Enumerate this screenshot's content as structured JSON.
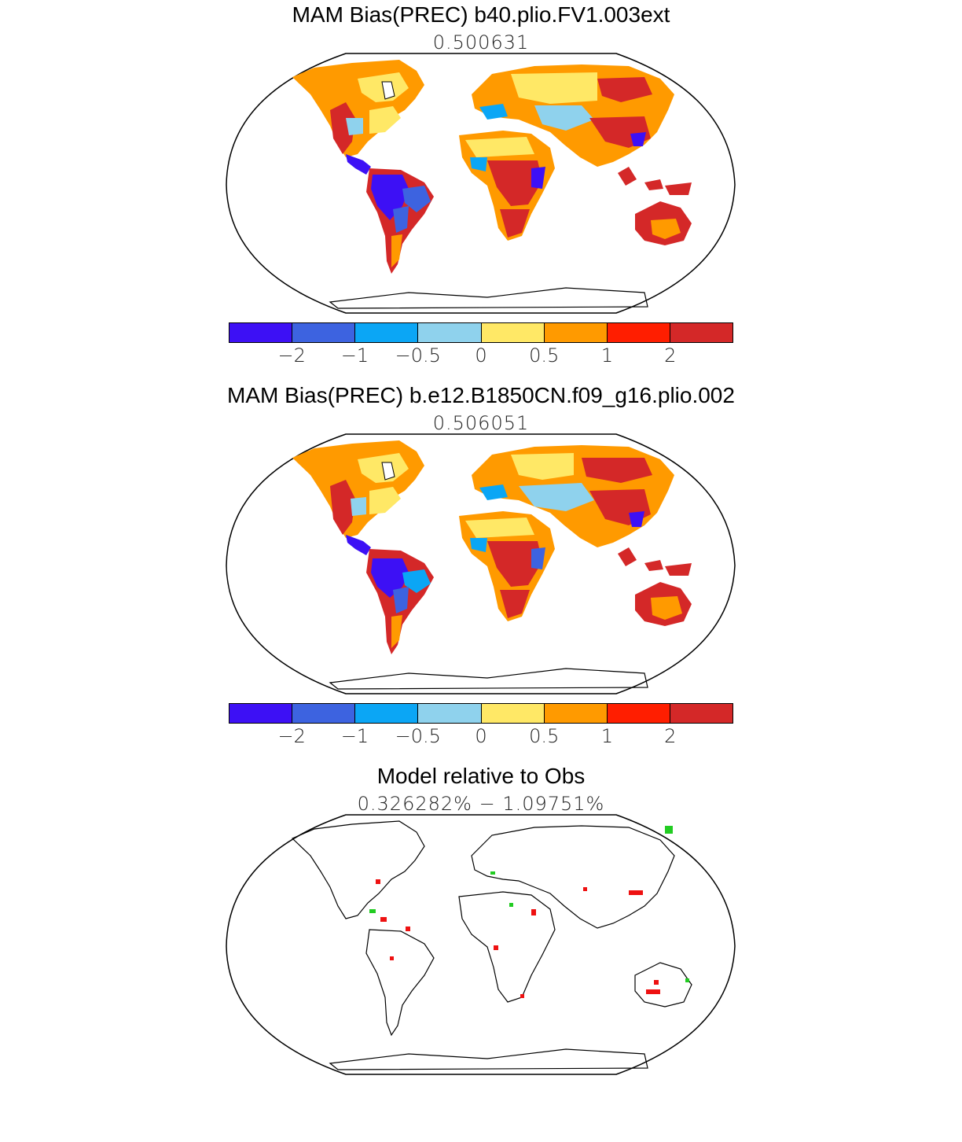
{
  "chart_data": [
    {
      "type": "heatmap",
      "title": "MAM Bias(PREC) b40.plio.FV1.003ext",
      "subtitle": "0.500631",
      "projection": "Robinson world map",
      "colorbar": {
        "levels": [
          "−2",
          "−1",
          "−0.5",
          "0",
          "0.5",
          "1",
          "2"
        ],
        "colors": [
          "#3d10f5",
          "#3d63e0",
          "#0ba6f5",
          "#8fd2ed",
          "#ffe866",
          "#ff9a00",
          "#ff1e00",
          "#d42828"
        ]
      }
    },
    {
      "type": "heatmap",
      "title": "MAM Bias(PREC) b.e12.B1850CN.f09_g16.plio.002",
      "subtitle": "0.506051",
      "projection": "Robinson world map",
      "colorbar": {
        "levels": [
          "−2",
          "−1",
          "−0.5",
          "0",
          "0.5",
          "1",
          "2"
        ],
        "colors": [
          "#3d10f5",
          "#3d63e0",
          "#0ba6f5",
          "#8fd2ed",
          "#ffe866",
          "#ff9a00",
          "#ff1e00",
          "#d42828"
        ]
      }
    },
    {
      "type": "heatmap",
      "title": "Model relative to Obs",
      "subtitle": "0.326282% − 1.09751%",
      "projection": "Robinson world map",
      "colors": {
        "better": "#22cc22",
        "worse": "#ee1111"
      }
    }
  ]
}
